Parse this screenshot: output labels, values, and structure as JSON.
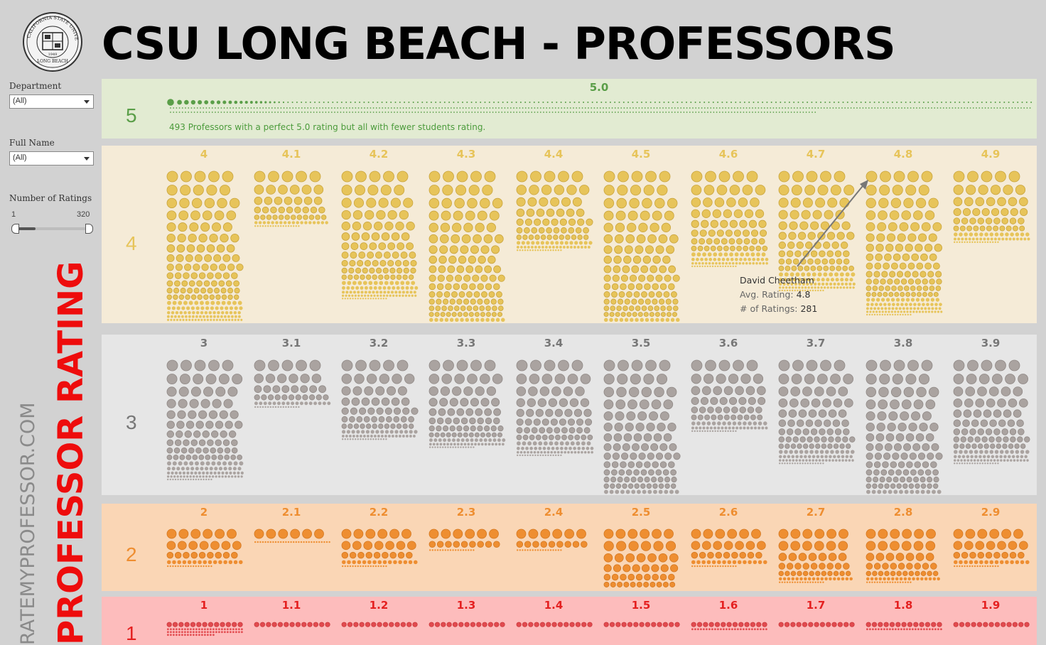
{
  "header": {
    "title": "CSU LONG BEACH - PROFESSORS",
    "seal_text_top": "CALIFORNIA STATE UNIVERSITY",
    "seal_text_bottom": "LONG BEACH",
    "seal_year": "1949"
  },
  "filters": {
    "department": {
      "label": "Department",
      "value": "(All)"
    },
    "full_name": {
      "label": "Full Name",
      "value": "(All)"
    },
    "num_ratings": {
      "label": "Number of Ratings",
      "min": "1",
      "max": "320"
    }
  },
  "side": {
    "source": "RATEMYPROFESSOR.COM",
    "title": "PROFESSOR RATING"
  },
  "colors": {
    "green_bg": "#e2ebd2",
    "green": "#5a9e48",
    "yellow_bg": "#f5ebd7",
    "yellow": "#e7c45a",
    "gray_bg": "#e6e6e6",
    "gray": "#aaa3a0",
    "orange_bg": "#fad6b5",
    "orange": "#ee8e31",
    "red_bg": "#fdbcbc",
    "red": "#e24b4f"
  },
  "bands": [
    {
      "label": "5",
      "color": "green",
      "columns": [
        {
          "label": "5.0",
          "shape": [
            [
              1,
              1,
              1,
              1,
              1,
              1,
              1,
              1,
              1,
              1,
              1,
              1,
              1,
              1,
              1,
              1,
              1,
              1,
              1,
              1,
              1,
              1,
              1,
              1,
              1,
              1,
              1,
              1,
              1,
              1,
              1,
              1,
              1,
              1,
              1,
              1,
              1,
              1,
              1,
              1,
              1,
              1,
              1,
              1,
              1,
              1,
              1,
              1,
              1,
              1,
              1,
              1,
              1,
              1,
              1,
              1,
              1,
              1,
              1,
              1,
              1,
              1,
              1,
              1,
              1,
              1,
              1,
              1,
              1,
              1,
              1,
              1,
              1,
              1,
              1,
              1,
              1,
              1,
              1,
              1,
              1,
              1,
              1,
              1,
              1,
              1,
              1,
              1,
              1,
              1,
              1,
              1,
              1,
              1,
              1,
              1,
              1,
              1,
              1,
              1,
              1,
              1,
              1,
              1,
              1,
              1,
              1,
              1,
              1,
              1,
              1,
              1,
              1,
              1,
              1,
              1,
              1,
              1,
              1,
              1,
              1,
              1,
              1,
              1,
              1,
              1,
              1,
              1,
              1,
              1,
              1,
              1,
              1,
              1,
              1,
              1,
              1,
              1,
              1,
              1,
              1,
              1,
              1,
              1,
              1,
              1,
              1,
              1,
              1,
              1,
              1,
              1,
              1,
              1,
              1,
              1,
              1,
              1,
              1,
              1,
              1,
              1,
              1,
              1,
              1,
              1,
              1,
              1,
              1,
              1,
              1,
              1,
              1,
              1,
              1,
              1,
              1,
              1,
              1,
              1,
              1,
              1,
              1,
              1,
              1,
              1,
              1,
              1,
              1,
              1,
              1,
              1,
              1,
              1,
              1,
              1,
              1,
              1,
              1,
              1,
              1,
              1,
              1,
              1,
              1
            ]
          ]
        }
      ],
      "note": "493 Professors with a perfect 5.0 rating but all with fewer students rating."
    },
    {
      "label": "4",
      "color": "yellow",
      "columns": [
        {
          "label": "4",
          "rows": 19
        },
        {
          "label": "4.1",
          "rows": 7
        },
        {
          "label": "4.2",
          "rows": 16
        },
        {
          "label": "4.3",
          "rows": 21
        },
        {
          "label": "4.4",
          "rows": 10
        },
        {
          "label": "4.5",
          "rows": 21
        },
        {
          "label": "4.6",
          "rows": 12
        },
        {
          "label": "4.7",
          "rows": 15
        },
        {
          "label": "4.8",
          "rows": 18
        },
        {
          "label": "4.9",
          "rows": 9
        }
      ]
    },
    {
      "label": "3",
      "color": "gray",
      "columns": [
        {
          "label": "3",
          "rows": 15
        },
        {
          "label": "3.1",
          "rows": 6
        },
        {
          "label": "3.2",
          "rows": 10
        },
        {
          "label": "3.3",
          "rows": 11
        },
        {
          "label": "3.4",
          "rows": 12
        },
        {
          "label": "3.5",
          "rows": 19
        },
        {
          "label": "3.6",
          "rows": 9
        },
        {
          "label": "3.7",
          "rows": 13
        },
        {
          "label": "3.8",
          "rows": 19
        },
        {
          "label": "3.9",
          "rows": 13
        }
      ]
    },
    {
      "label": "2",
      "color": "orange",
      "columns": [
        {
          "label": "2",
          "rows": 5
        },
        {
          "label": "2.1",
          "rows": 2
        },
        {
          "label": "2.2",
          "rows": 5
        },
        {
          "label": "2.3",
          "rows": 3
        },
        {
          "label": "2.4",
          "rows": 3
        },
        {
          "label": "2.5",
          "rows": 9
        },
        {
          "label": "2.6",
          "rows": 5
        },
        {
          "label": "2.7",
          "rows": 7
        },
        {
          "label": "2.8",
          "rows": 7
        },
        {
          "label": "2.9",
          "rows": 5
        }
      ]
    },
    {
      "label": "1",
      "color": "red",
      "columns": [
        {
          "label": "1",
          "rows": 4
        },
        {
          "label": "1.1",
          "rows": 1
        },
        {
          "label": "1.2",
          "rows": 1
        },
        {
          "label": "1.3",
          "rows": 1
        },
        {
          "label": "1.4",
          "rows": 1
        },
        {
          "label": "1.5",
          "rows": 1
        },
        {
          "label": "1.6",
          "rows": 2
        },
        {
          "label": "1.7",
          "rows": 1
        },
        {
          "label": "1.8",
          "rows": 2
        },
        {
          "label": "1.9",
          "rows": 1
        }
      ]
    }
  ],
  "tooltip": {
    "name": "David Cheetham",
    "avg_label": "Avg. Rating:",
    "avg_value": "4.8",
    "count_label": "# of Ratings:",
    "count_value": "281"
  }
}
